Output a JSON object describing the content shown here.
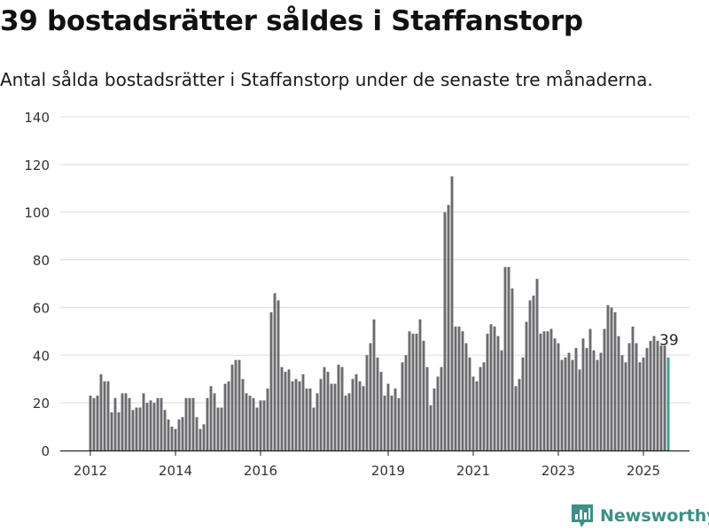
{
  "header": {
    "title": "39 bostadsrätter såldes i Staffanstorp",
    "subtitle": "Antal sålda bostadsrätter i Staffanstorp under de senaste tre månaderna."
  },
  "brand": {
    "name": "Newsworthy",
    "icon": "newsworthy-logo-icon",
    "color": "#3d8f87"
  },
  "chart_data": {
    "type": "bar",
    "title": "39 bostadsrätter såldes i Staffanstorp",
    "subtitle": "Antal sålda bostadsrätter i Staffanstorp under de senaste tre månaderna.",
    "xlabel": "",
    "ylabel": "",
    "ylim": [
      0,
      140
    ],
    "yticks": [
      0,
      20,
      40,
      60,
      80,
      100,
      120,
      140
    ],
    "grid": true,
    "legend": "none",
    "bar_color": "#6b6b70",
    "highlight_color": "#3a9e93",
    "start_period": "2012-01",
    "x_ticks": [
      {
        "label": "2012",
        "index": 0
      },
      {
        "label": "2014",
        "index": 24
      },
      {
        "label": "2016",
        "index": 48
      },
      {
        "label": "2019",
        "index": 84
      },
      {
        "label": "2021",
        "index": 108
      },
      {
        "label": "2023",
        "index": 132
      },
      {
        "label": "2025",
        "index": 156
      }
    ],
    "values": [
      23,
      22,
      23,
      32,
      29,
      29,
      16,
      22,
      16,
      24,
      24,
      22,
      17,
      18,
      18,
      24,
      20,
      21,
      20,
      22,
      22,
      17,
      13,
      10,
      9,
      13,
      14,
      22,
      22,
      22,
      14,
      9,
      11,
      22,
      27,
      24,
      18,
      18,
      28,
      29,
      36,
      38,
      38,
      30,
      24,
      23,
      22,
      18,
      21,
      21,
      26,
      58,
      66,
      63,
      35,
      33,
      34,
      29,
      30,
      29,
      32,
      26,
      26,
      18,
      24,
      30,
      35,
      33,
      28,
      28,
      36,
      35,
      23,
      24,
      30,
      32,
      29,
      27,
      40,
      45,
      55,
      39,
      33,
      23,
      28,
      23,
      26,
      22,
      37,
      40,
      50,
      49,
      49,
      55,
      46,
      35,
      19,
      26,
      31,
      35,
      100,
      103,
      115,
      52,
      52,
      50,
      45,
      39,
      31,
      29,
      35,
      37,
      49,
      53,
      52,
      48,
      42,
      77,
      77,
      68,
      27,
      30,
      39,
      54,
      63,
      65,
      72,
      49,
      50,
      50,
      51,
      47,
      45,
      38,
      39,
      41,
      38,
      43,
      34,
      47,
      43,
      51,
      42,
      38,
      41,
      51,
      61,
      60,
      58,
      48,
      40,
      37,
      45,
      52,
      45,
      37,
      39,
      43,
      46,
      48,
      46,
      44,
      44,
      39
    ],
    "highlight_last": true,
    "last_value_label": "39"
  }
}
